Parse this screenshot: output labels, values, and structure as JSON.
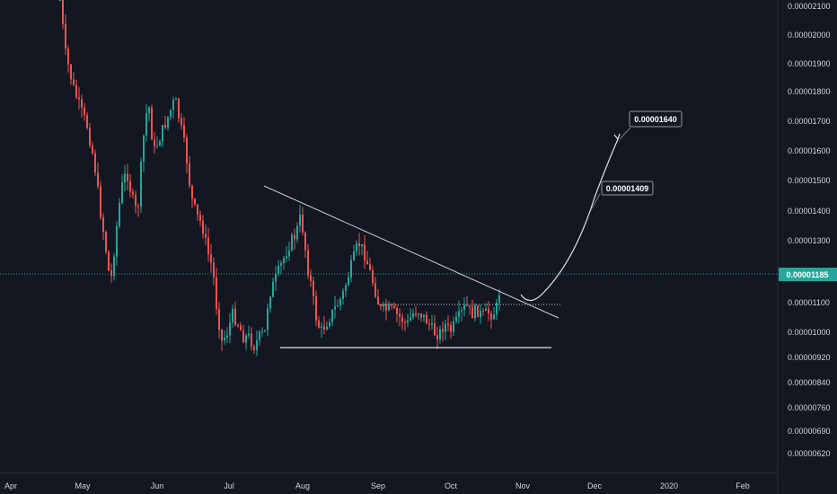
{
  "chart_data": {
    "type": "candlestick",
    "y_ticks": [
      "0.00002100",
      "0.00002000",
      "0.00001900",
      "0.00001800",
      "0.00001700",
      "0.00001600",
      "0.00001500",
      "0.00001400",
      "0.00001300",
      "0.00001200",
      "0.00001100",
      "0.00001000",
      "0.00000920",
      "0.00000840",
      "0.00000760",
      "0.00000690",
      "0.00000620"
    ],
    "x_ticks": [
      "Apr",
      "May",
      "Jun",
      "Jul",
      "Aug",
      "Sep",
      "Oct",
      "Nov",
      "Dec",
      "2020",
      "Feb"
    ],
    "current_price": "0.00001185",
    "annotations": [
      "0.00001409",
      "0.00001640"
    ],
    "colors": {
      "up": "#26a69a",
      "down": "#ef5350",
      "background": "#131722",
      "current_line": "#26a69a",
      "drawing": "#d1d4dc"
    },
    "candles": []
  }
}
